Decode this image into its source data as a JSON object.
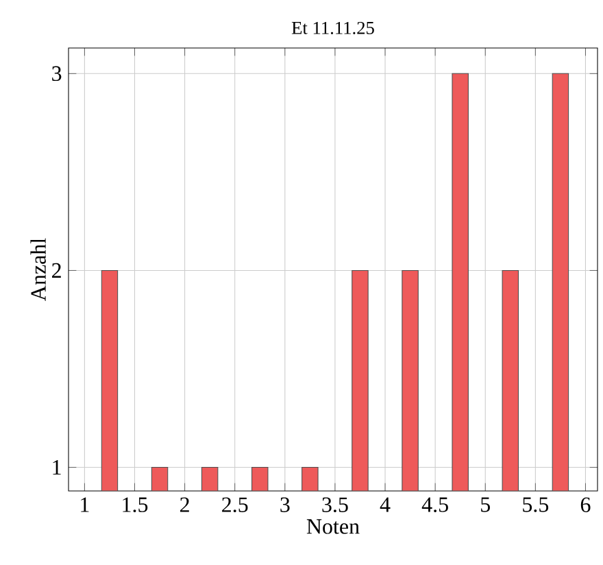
{
  "chart_data": {
    "type": "bar",
    "title": "Et 11.11.25",
    "xlabel": "Noten",
    "ylabel": "Anzahl",
    "x": [
      1.25,
      1.75,
      2.25,
      2.75,
      3.25,
      3.75,
      4.25,
      4.75,
      5.25,
      5.75
    ],
    "values": [
      2,
      1,
      1,
      1,
      1,
      2,
      2,
      3,
      2,
      3
    ],
    "color": "#ee5a5a",
    "xlim": [
      0.84,
      6.12
    ],
    "ylim": [
      0.88,
      3.13
    ],
    "xticks": [
      1,
      1.5,
      2,
      2.5,
      3,
      3.5,
      4,
      4.5,
      5,
      5.5,
      6
    ],
    "yticks": [
      1,
      2,
      3
    ],
    "grid": true
  }
}
